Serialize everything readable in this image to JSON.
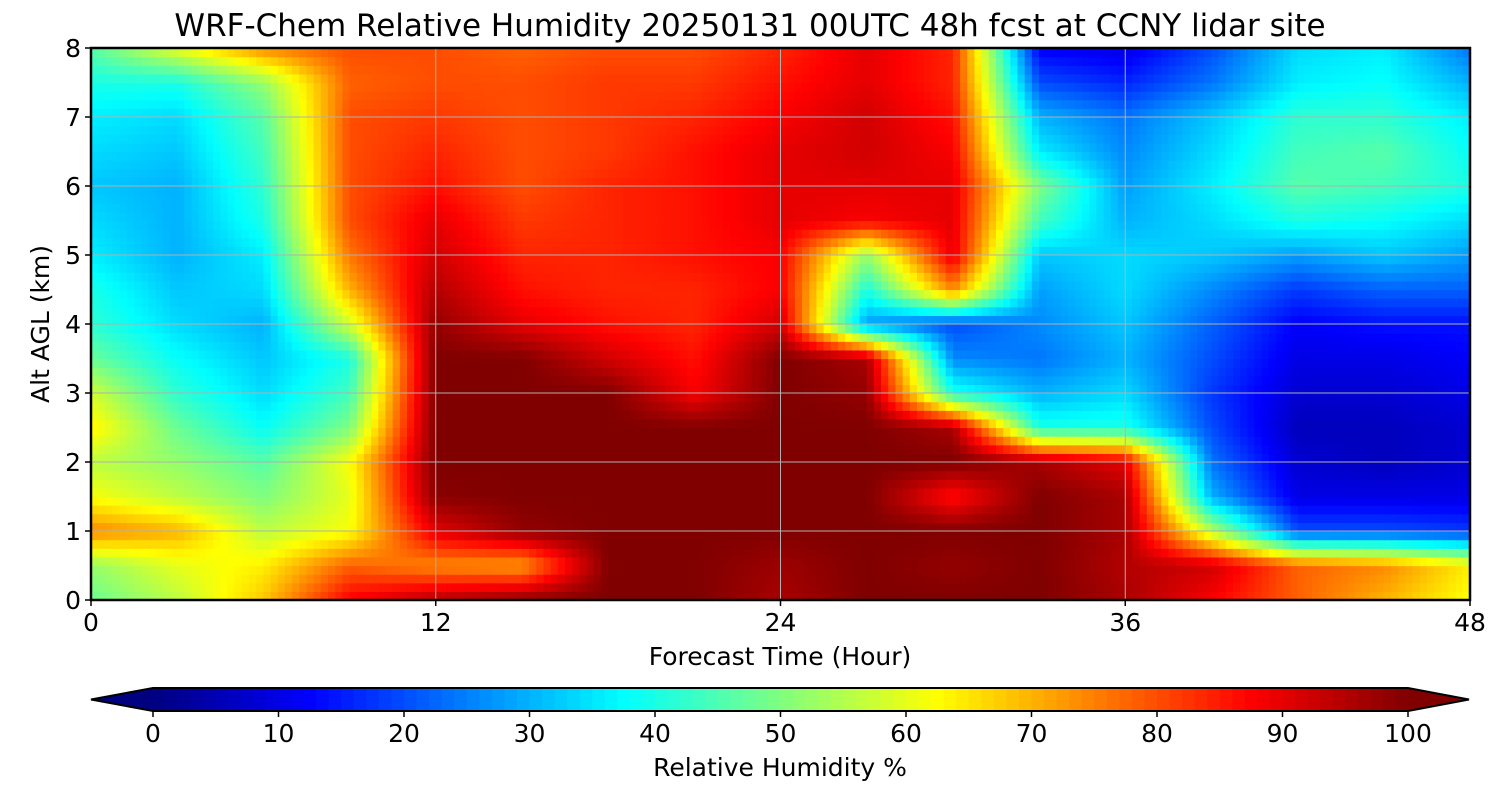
{
  "chart_data": {
    "type": "heatmap",
    "title": "WRF-Chem Relative Humidity 20250131 00UTC 48h fcst at CCNY lidar site",
    "xlabel": "Forecast Time (Hour)",
    "ylabel": "Alt AGL (km)",
    "colorbar_label": "Relative Humidity %",
    "colormap": "jet",
    "xlim": [
      0,
      48
    ],
    "ylim": [
      0,
      8
    ],
    "clim": [
      0,
      100
    ],
    "x_ticks": [
      0,
      12,
      24,
      36,
      48
    ],
    "y_ticks": [
      0,
      1,
      2,
      3,
      4,
      5,
      6,
      7,
      8
    ],
    "colorbar_ticks": [
      0,
      10,
      20,
      30,
      40,
      50,
      60,
      70,
      80,
      90,
      100
    ],
    "grid": true,
    "x": [
      0,
      3,
      6,
      9,
      12,
      15,
      18,
      21,
      24,
      27,
      30,
      33,
      36,
      39,
      42,
      45,
      48
    ],
    "y": [
      0,
      0.5,
      1,
      1.5,
      2,
      2.5,
      3,
      3.5,
      4,
      4.5,
      5,
      5.5,
      6,
      6.5,
      7,
      7.5,
      8
    ],
    "z": [
      [
        48,
        56,
        68,
        88,
        95,
        99,
        100,
        100,
        96,
        100,
        100,
        100,
        96,
        88,
        78,
        70,
        62
      ],
      [
        52,
        60,
        64,
        78,
        74,
        72,
        100,
        100,
        97,
        100,
        98,
        100,
        95,
        92,
        78,
        74,
        64
      ],
      [
        74,
        70,
        56,
        62,
        90,
        98,
        100,
        100,
        100,
        100,
        100,
        100,
        96,
        56,
        20,
        20,
        18
      ],
      [
        62,
        56,
        50,
        60,
        99,
        100,
        100,
        100,
        100,
        100,
        86,
        100,
        96,
        30,
        10,
        10,
        10
      ],
      [
        56,
        52,
        46,
        62,
        100,
        100,
        100,
        100,
        100,
        100,
        100,
        96,
        90,
        24,
        8,
        6,
        8
      ],
      [
        64,
        48,
        38,
        50,
        100,
        100,
        100,
        100,
        100,
        100,
        96,
        40,
        40,
        20,
        6,
        6,
        8
      ],
      [
        58,
        42,
        34,
        44,
        100,
        100,
        100,
        88,
        100,
        98,
        40,
        30,
        34,
        18,
        8,
        8,
        10
      ],
      [
        48,
        38,
        32,
        40,
        100,
        100,
        92,
        86,
        100,
        96,
        26,
        24,
        30,
        20,
        10,
        10,
        12
      ],
      [
        42,
        34,
        30,
        58,
        98,
        90,
        86,
        84,
        92,
        28,
        20,
        26,
        32,
        22,
        12,
        14,
        14
      ],
      [
        40,
        32,
        34,
        70,
        95,
        86,
        84,
        84,
        88,
        40,
        74,
        28,
        34,
        26,
        18,
        22,
        22
      ],
      [
        36,
        30,
        36,
        76,
        92,
        84,
        84,
        86,
        88,
        52,
        90,
        32,
        34,
        32,
        28,
        32,
        28
      ],
      [
        34,
        30,
        40,
        80,
        90,
        82,
        84,
        86,
        90,
        88,
        90,
        44,
        30,
        34,
        40,
        38,
        34
      ],
      [
        32,
        30,
        42,
        80,
        86,
        80,
        84,
        86,
        90,
        90,
        90,
        50,
        28,
        36,
        46,
        44,
        40
      ],
      [
        34,
        32,
        44,
        80,
        84,
        80,
        82,
        86,
        90,
        92,
        88,
        36,
        26,
        34,
        44,
        46,
        38
      ],
      [
        36,
        34,
        46,
        80,
        82,
        80,
        82,
        84,
        88,
        92,
        86,
        30,
        24,
        32,
        42,
        42,
        36
      ],
      [
        40,
        40,
        52,
        78,
        80,
        80,
        82,
        82,
        86,
        90,
        84,
        20,
        16,
        24,
        36,
        38,
        30
      ],
      [
        46,
        60,
        74,
        80,
        80,
        78,
        80,
        80,
        84,
        90,
        84,
        12,
        10,
        20,
        34,
        36,
        24
      ]
    ]
  }
}
